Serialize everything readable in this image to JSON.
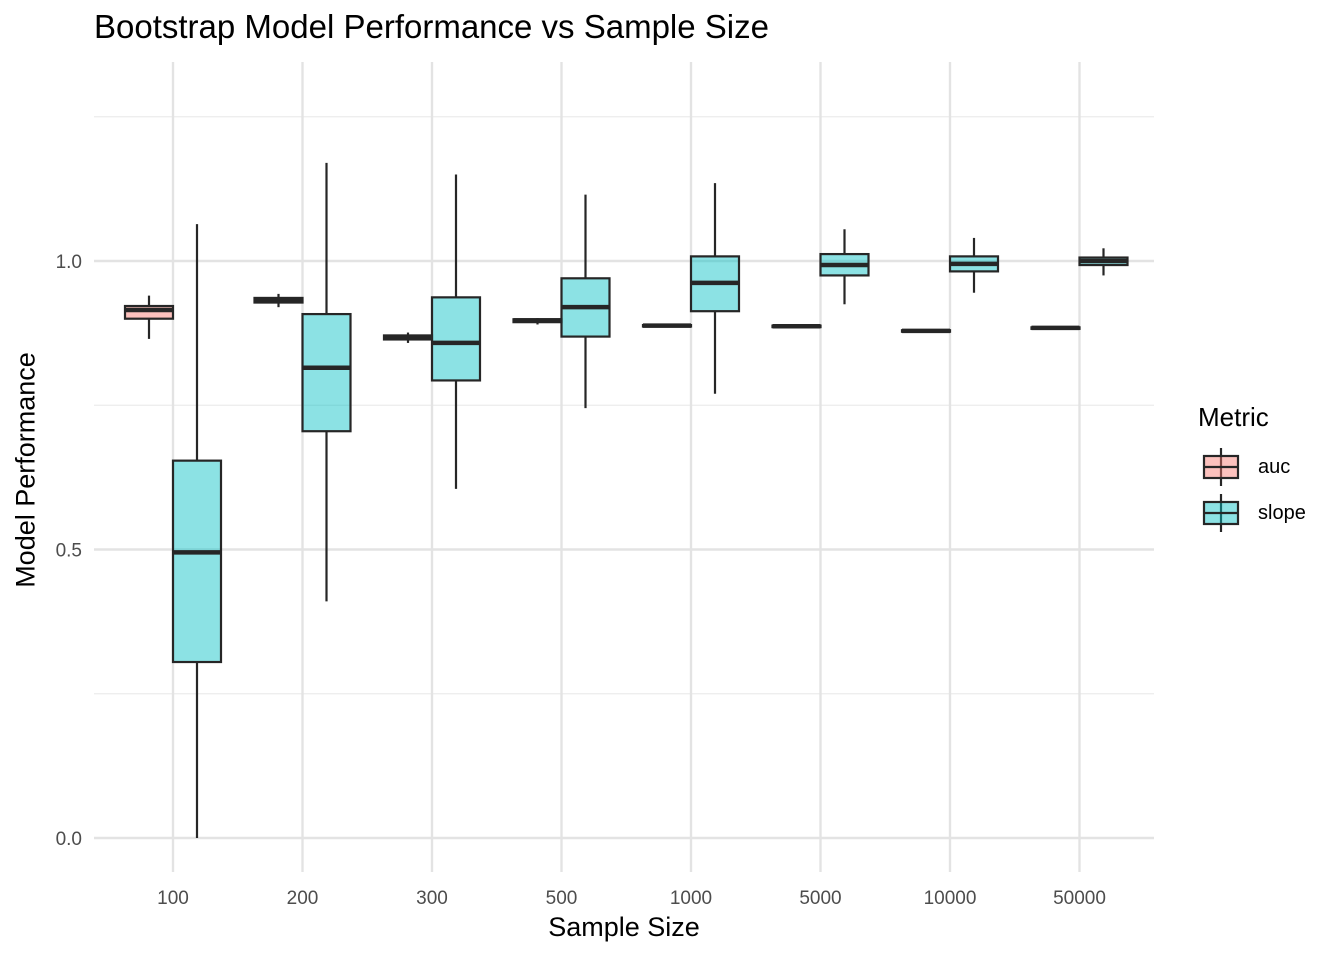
{
  "chart_data": {
    "type": "boxplot",
    "title": "Bootstrap Model Performance vs Sample Size",
    "xlabel": "Sample Size",
    "ylabel": "Model Performance",
    "categories": [
      "100",
      "200",
      "300",
      "500",
      "1000",
      "5000",
      "10000",
      "50000"
    ],
    "yticks": [
      "0.0",
      "0.5",
      "1.0"
    ],
    "ylim": [
      -0.06,
      1.3
    ],
    "grid": true,
    "legend": {
      "title": "Metric",
      "position": "right"
    },
    "series": [
      {
        "name": "auc",
        "color": "#F8766D",
        "boxes": [
          {
            "min": 0.865,
            "q1": 0.9,
            "median": 0.915,
            "q3": 0.922,
            "max": 0.94
          },
          {
            "min": 0.92,
            "q1": 0.928,
            "median": 0.932,
            "q3": 0.936,
            "max": 0.943
          },
          {
            "min": 0.858,
            "q1": 0.864,
            "median": 0.868,
            "q3": 0.871,
            "max": 0.876
          },
          {
            "min": 0.89,
            "q1": 0.894,
            "median": 0.897,
            "q3": 0.899,
            "max": 0.901
          },
          {
            "min": 0.886,
            "q1": 0.887,
            "median": 0.888,
            "q3": 0.889,
            "max": 0.89
          },
          {
            "min": 0.885,
            "q1": 0.886,
            "median": 0.887,
            "q3": 0.888,
            "max": 0.889
          },
          {
            "min": 0.877,
            "q1": 0.878,
            "median": 0.879,
            "q3": 0.88,
            "max": 0.881
          },
          {
            "min": 0.882,
            "q1": 0.883,
            "median": 0.884,
            "q3": 0.885,
            "max": 0.886
          }
        ]
      },
      {
        "name": "slope",
        "color": "#00BFC4",
        "boxes": [
          {
            "min": 0.0,
            "q1": 0.305,
            "median": 0.495,
            "q3": 0.654,
            "max": 1.064
          },
          {
            "min": 0.41,
            "q1": 0.705,
            "median": 0.815,
            "q3": 0.908,
            "max": 1.17
          },
          {
            "min": 0.605,
            "q1": 0.793,
            "median": 0.858,
            "q3": 0.937,
            "max": 1.15
          },
          {
            "min": 0.745,
            "q1": 0.869,
            "median": 0.92,
            "q3": 0.97,
            "max": 1.115
          },
          {
            "min": 0.77,
            "q1": 0.913,
            "median": 0.962,
            "q3": 1.008,
            "max": 1.135
          },
          {
            "min": 0.925,
            "q1": 0.975,
            "median": 0.993,
            "q3": 1.012,
            "max": 1.055
          },
          {
            "min": 0.945,
            "q1": 0.982,
            "median": 0.995,
            "q3": 1.008,
            "max": 1.04
          },
          {
            "min": 0.975,
            "q1": 0.993,
            "median": 1.0,
            "q3": 1.006,
            "max": 1.022
          }
        ]
      }
    ]
  }
}
